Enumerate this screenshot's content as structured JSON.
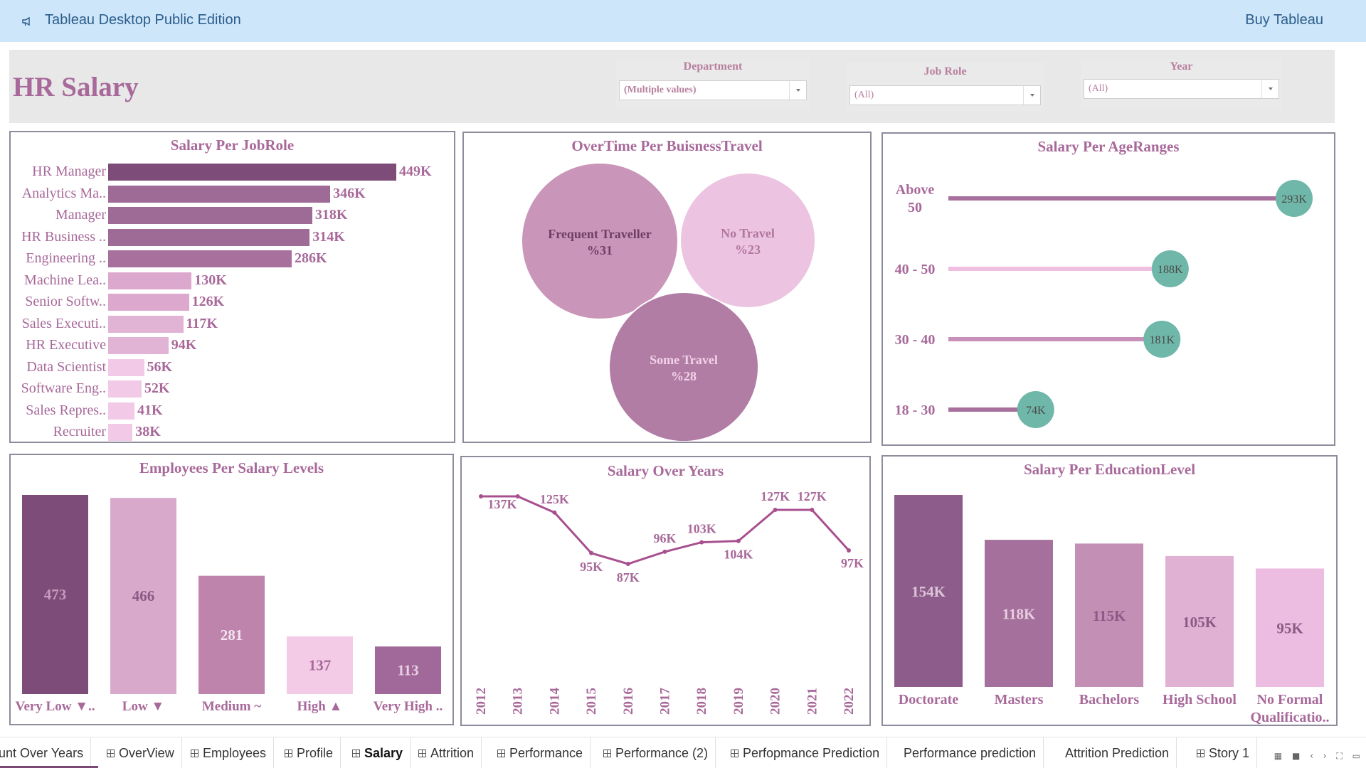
{
  "app": {
    "title": "Tableau Desktop Public Edition",
    "buy_label": "Buy Tableau"
  },
  "dashboard": {
    "title": "HR Salary",
    "filters": [
      {
        "label": "Department",
        "value": "(Multiple values)"
      },
      {
        "label": "Job Role",
        "value": "(All)"
      },
      {
        "label": "Year",
        "value": "(All)"
      }
    ]
  },
  "colors": {
    "accent_text": "#a8699a",
    "teal_marker": "#6fb7a8",
    "frame": "#8c8c9c",
    "topbar": "#cde6fa"
  },
  "chart_data": [
    {
      "id": "salary_per_jobrole",
      "type": "bar",
      "orientation": "horizontal",
      "title": "Salary Per JobRole",
      "categories": [
        "HR Manager",
        "Analytics Ma..",
        "Manager",
        "HR Business ..",
        "Engineering ..",
        "Machine Lea..",
        "Senior Softw..",
        "Sales Executi..",
        "HR Executive",
        "Data Scientist",
        "Software Eng..",
        "Sales Repres..",
        "Recruiter"
      ],
      "values": [
        449,
        346,
        318,
        314,
        286,
        130,
        126,
        117,
        94,
        56,
        52,
        41,
        38
      ],
      "value_labels": [
        "449K",
        "346K",
        "318K",
        "314K",
        "286K",
        "130K",
        "126K",
        "117K",
        "94K",
        "56K",
        "52K",
        "41K",
        "38K"
      ],
      "unit": "K",
      "colors": [
        "#7d4c78",
        "#9e6a96",
        "#9e6a96",
        "#9e6a96",
        "#a8719d",
        "#dca8cd",
        "#dca8cd",
        "#e1b4d6",
        "#e1b4d6",
        "#f2c9e6",
        "#f2c9e6",
        "#f2c9e6",
        "#f2c9e6"
      ]
    },
    {
      "id": "overtime_per_businesstravel",
      "type": "bubble",
      "title": "OverTime  Per BuisnessTravel",
      "categories": [
        "Frequent Traveller",
        "No Travel",
        "Some Travel"
      ],
      "values": [
        31,
        23,
        28
      ],
      "value_labels": [
        "%31",
        "%23",
        "%28"
      ],
      "colors": [
        "#c995b8",
        "#ecc3e0",
        "#b27da5"
      ]
    },
    {
      "id": "salary_per_ageranges",
      "type": "lollipop",
      "title": "Salary Per AgeRanges",
      "categories": [
        "Above 50",
        "40 - 50",
        "30 - 40",
        "18 - 30"
      ],
      "category_lines": [
        [
          "Above",
          "50"
        ],
        [
          "40 - 50"
        ],
        [
          "30 - 40"
        ],
        [
          "18 - 30"
        ]
      ],
      "values": [
        293,
        188,
        181,
        74
      ],
      "value_labels": [
        "293K",
        "188K",
        "181K",
        "74K"
      ],
      "colors": [
        "#a8719d",
        "#f0bfe0",
        "#c790b8",
        "#a8719d"
      ],
      "marker_color": "#6fb7a8"
    },
    {
      "id": "employees_per_salary_levels",
      "type": "bar",
      "title": "Employees Per Salary Levels",
      "categories": [
        "Very Low ▼..",
        "Low ▼",
        "Medium ~",
        "High ▲",
        "Very High .."
      ],
      "values": [
        473,
        466,
        281,
        137,
        113
      ],
      "value_labels": [
        "473",
        "466",
        "281",
        "137",
        "113"
      ],
      "colors": [
        "#7d4c78",
        "#d8a9cb",
        "#bf84ac",
        "#f3cbe6",
        "#a0699a"
      ],
      "label_colors": [
        "#c99ac0",
        "#8c5a86",
        "#f4e4f0",
        "#a8699a",
        "#e9cfe3"
      ]
    },
    {
      "id": "salary_over_years",
      "type": "line",
      "title": "Salary Over Years",
      "x": [
        "2012",
        "2013",
        "2014",
        "2015",
        "2016",
        "2017",
        "2018",
        "2019",
        "2020",
        "2021",
        "2022"
      ],
      "y": [
        137,
        137,
        125,
        95,
        87,
        96,
        103,
        104,
        127,
        127,
        97
      ],
      "value_labels": [
        "137K",
        "",
        "125K",
        "95K",
        "87K",
        "96K",
        "103K",
        "104K",
        "127K",
        "127K",
        "97K"
      ],
      "line_color": "#a8508f"
    },
    {
      "id": "salary_per_educationlevel",
      "type": "bar",
      "title": "Salary Per EducationLevel",
      "categories": [
        "Doctorate",
        "Masters",
        "Bachelors",
        "High School",
        "No Formal Qualificatio.."
      ],
      "category_lines": [
        [
          "Doctorate"
        ],
        [
          "Masters"
        ],
        [
          "Bachelors"
        ],
        [
          "High School"
        ],
        [
          "No Formal",
          "Qualificatio.."
        ]
      ],
      "values": [
        154,
        118,
        115,
        105,
        95
      ],
      "value_labels": [
        "154K",
        "118K",
        "115K",
        "105K",
        "95K"
      ],
      "colors": [
        "#8e5c8a",
        "#a5709c",
        "#c38fb5",
        "#e1b1d4",
        "#ecbde0"
      ],
      "label_colors": [
        "#dcc4d8",
        "#e6cde0",
        "#8c5a86",
        "#8c5a86",
        "#8c5a86"
      ]
    }
  ],
  "tabs": [
    {
      "label": "unt Over Years",
      "icon": false,
      "active": false
    },
    {
      "label": "OverView",
      "icon": true,
      "active": false
    },
    {
      "label": "Employees",
      "icon": true,
      "active": false
    },
    {
      "label": "Profile",
      "icon": true,
      "active": false
    },
    {
      "label": "Salary",
      "icon": true,
      "active": true
    },
    {
      "label": "Attrition",
      "icon": true,
      "active": false
    },
    {
      "label": "Performance",
      "icon": true,
      "active": false
    },
    {
      "label": "Performance (2)",
      "icon": true,
      "active": false
    },
    {
      "label": "Perfopmance Prediction",
      "icon": true,
      "active": false
    },
    {
      "label": "Performance prediction",
      "icon": false,
      "active": false
    },
    {
      "label": "Attrition Prediction",
      "icon": false,
      "active": false
    },
    {
      "label": "Story 1",
      "icon": true,
      "active": false
    }
  ]
}
